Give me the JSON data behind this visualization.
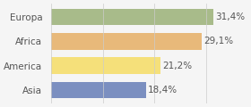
{
  "categories": [
    "Asia",
    "America",
    "Africa",
    "Europa"
  ],
  "values": [
    18.4,
    21.2,
    29.1,
    31.4
  ],
  "labels": [
    "18,4%",
    "21,2%",
    "29,1%",
    "31,4%"
  ],
  "bar_colors": [
    "#7b8fc0",
    "#f5e07a",
    "#e8b97a",
    "#a8bb8a"
  ],
  "background_color": "#f5f5f5",
  "xlim": [
    0,
    38
  ],
  "label_fontsize": 7.5,
  "category_fontsize": 7.5
}
